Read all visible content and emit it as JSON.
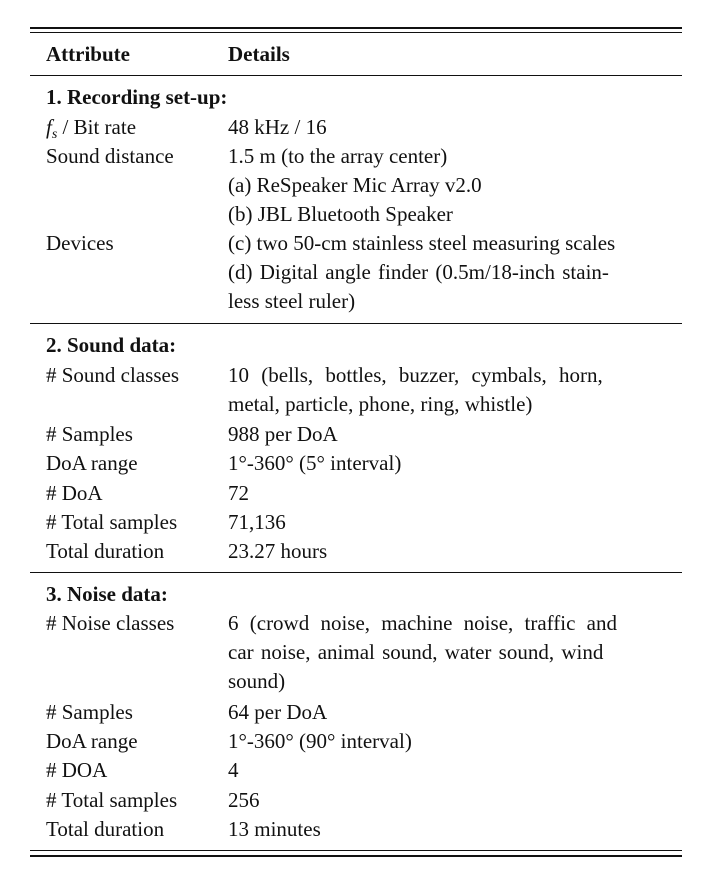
{
  "header": {
    "attribute": "Attribute",
    "details": "Details"
  },
  "sections": [
    {
      "title": "1. Recording set-up:",
      "rows": [
        {
          "attr_var": "f",
          "attr_sub": "s",
          "attr": "/ Bit rate",
          "details": [
            "48 kHz / 16"
          ]
        },
        {
          "attr": "Sound distance",
          "details": [
            "1.5 m (to the array center)"
          ]
        },
        {
          "attr": "Devices",
          "details": [
            "(a) ReSpeaker Mic Array v2.0",
            "(b) JBL Bluetooth Speaker",
            "(c) two 50-cm stainless steel measuring scales",
            "(d) Digital angle finder (0.5m/18-inch stain-",
            "less steel ruler)"
          ]
        }
      ]
    },
    {
      "title": "2. Sound data:",
      "rows": [
        {
          "attr": "# Sound classes",
          "details": [
            "10 (bells, bottles, buzzer, cymbals, horn,",
            "metal, particle, phone, ring, whistle)"
          ]
        },
        {
          "attr": "# Samples",
          "details": [
            "988 per DoA"
          ]
        },
        {
          "attr": "DoA range",
          "details": [
            "1°-360° (5° interval)"
          ]
        },
        {
          "attr": "# DoA",
          "details": [
            "72"
          ]
        },
        {
          "attr": "# Total samples",
          "details": [
            "71,136"
          ]
        },
        {
          "attr": "Total duration",
          "details": [
            "23.27 hours"
          ]
        }
      ]
    },
    {
      "title": "3. Noise data:",
      "rows": [
        {
          "attr": "# Noise classes",
          "details": [
            "6 (crowd noise, machine noise, traffic and",
            "car noise, animal sound, water sound, wind",
            "sound)"
          ]
        },
        {
          "attr": "# Samples",
          "details": [
            "64 per DoA"
          ]
        },
        {
          "attr": "DoA range",
          "details": [
            "1°-360° (90° interval)"
          ]
        },
        {
          "attr": "# DOA",
          "details": [
            "4"
          ]
        },
        {
          "attr": "# Total samples",
          "details": [
            "256"
          ]
        },
        {
          "attr": "Total duration",
          "details": [
            "13 minutes"
          ]
        }
      ]
    }
  ]
}
